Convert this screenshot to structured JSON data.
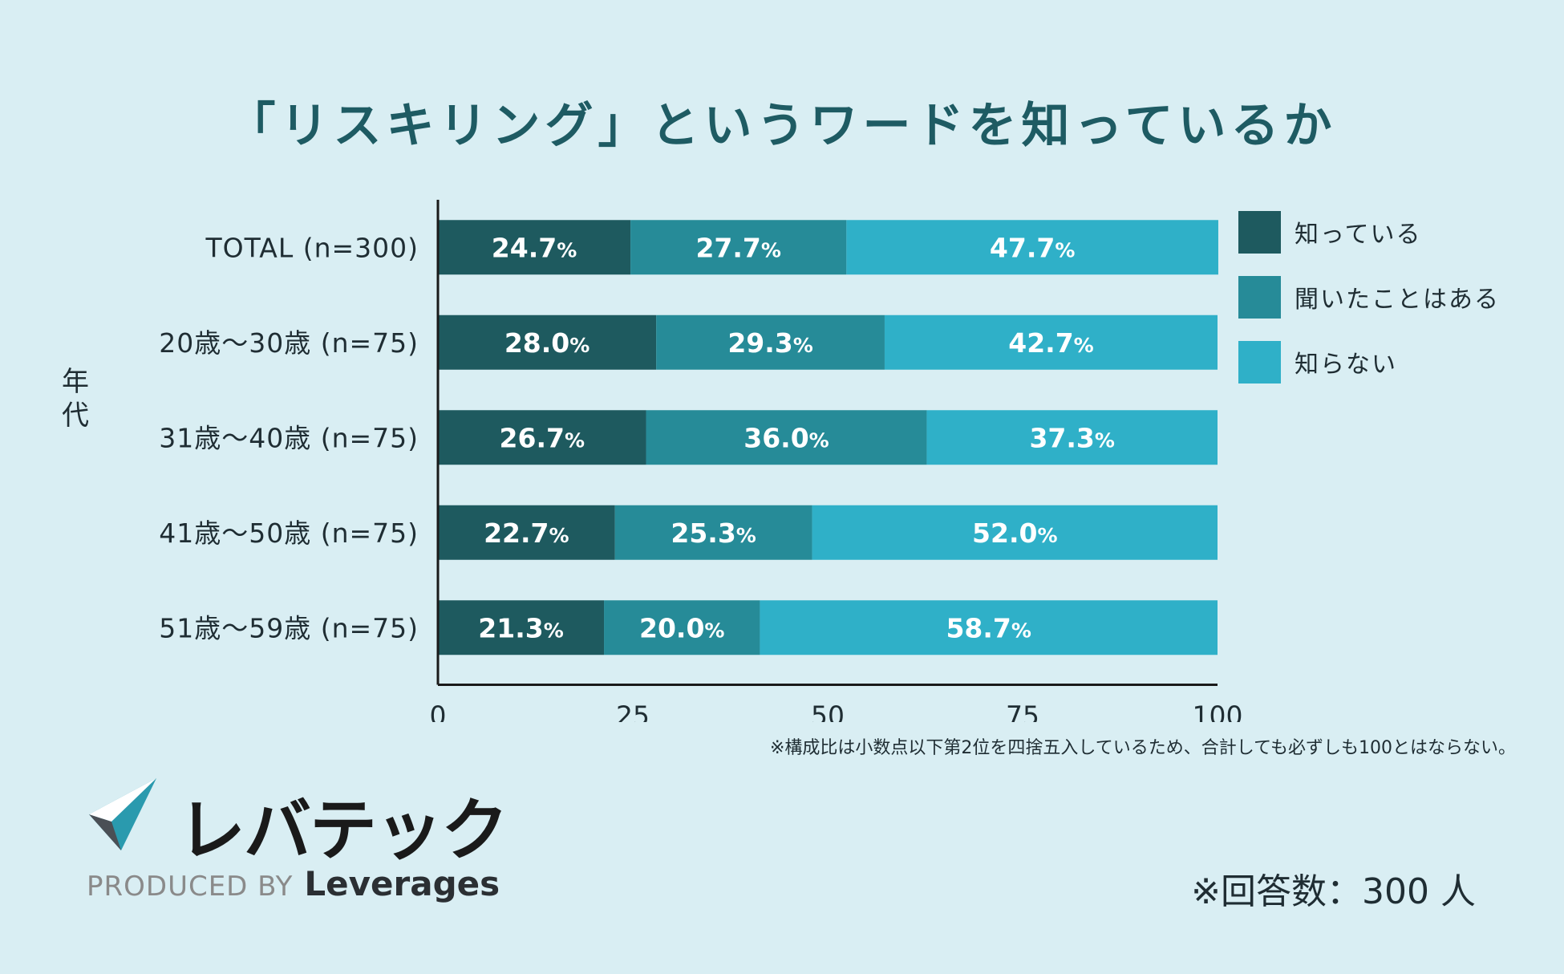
{
  "chart_data": {
    "type": "bar",
    "orientation": "horizontal",
    "stacked": true,
    "title": "「リスキリング」というワードを知っているか",
    "ylabel": "年代",
    "xlim": [
      0,
      100
    ],
    "xticks": [
      "0",
      "25",
      "50",
      "75",
      "100"
    ],
    "categories": [
      "TOTAL (n=300)",
      "20歳～30歳 (n=75)",
      "31歳～40歳 (n=75)",
      "41歳～50歳 (n=75)",
      "51歳～59歳 (n=75)"
    ],
    "series": [
      {
        "name": "知っている",
        "color": "#1e5a5f",
        "values": [
          24.7,
          28.0,
          26.7,
          22.7,
          21.3
        ]
      },
      {
        "name": "聞いたことはある",
        "color": "#268b98",
        "values": [
          27.7,
          29.3,
          36.0,
          25.3,
          20.0
        ]
      },
      {
        "name": "知らない",
        "color": "#2fb0c8",
        "values": [
          47.7,
          42.7,
          37.3,
          52.0,
          58.7
        ]
      }
    ],
    "data_labels": [
      [
        "24.7",
        "27.7",
        "47.7"
      ],
      [
        "28.0",
        "29.3",
        "42.7"
      ],
      [
        "26.7",
        "36.0",
        "37.3"
      ],
      [
        "22.7",
        "25.3",
        "52.0"
      ],
      [
        "21.3",
        "20.0",
        "58.7"
      ]
    ],
    "label_suffix": "%",
    "legend_position": "right"
  },
  "note": "※構成比は小数点以下第2位を四捨五入しているため、合計しても必ずしも100とはならない。",
  "respondents": "※回答数：300 人",
  "brand": {
    "name": "レバテック",
    "produced_by": "PRODUCED BY",
    "company": "Leverages"
  }
}
